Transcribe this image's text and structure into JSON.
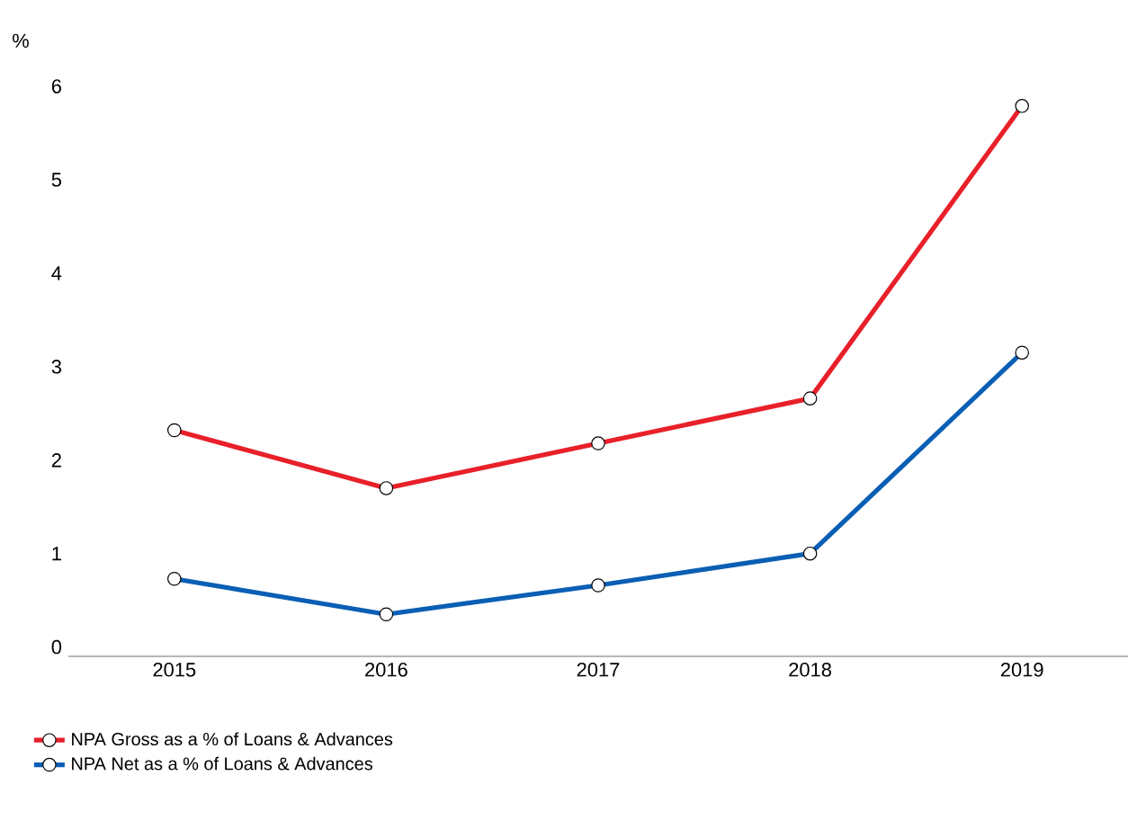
{
  "chart_data": {
    "type": "line",
    "ylabel": "%",
    "categories": [
      "2015",
      "2016",
      "2017",
      "2018",
      "2019"
    ],
    "series": [
      {
        "name": "NPA Gross as a % of Loans & Advances",
        "color": "#e8202a",
        "values": [
          2.32,
          1.7,
          2.18,
          2.66,
          5.79
        ]
      },
      {
        "name": "NPA Net as a % of Loans & Advances",
        "color": "#0a5fb4",
        "values": [
          0.73,
          0.35,
          0.66,
          1.0,
          3.15
        ]
      }
    ],
    "ylim": [
      -0.1,
      6
    ],
    "yticks": [
      0,
      1,
      2,
      3,
      4,
      5,
      6
    ],
    "marker": "circle",
    "line_style": "solid",
    "legend": "bottom left",
    "grid": false
  }
}
